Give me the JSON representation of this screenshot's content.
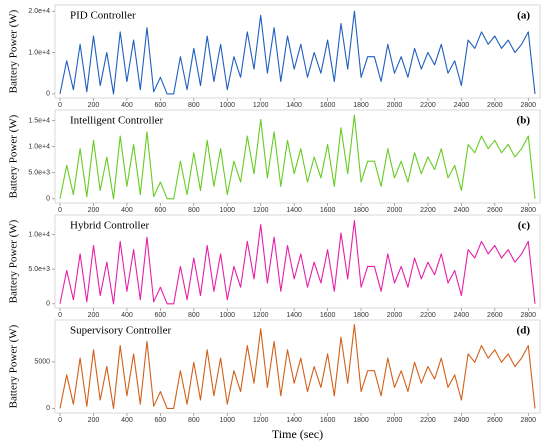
{
  "chart_data": [
    {
      "type": "line",
      "title": "PID Controller",
      "annotation": "(a)",
      "ylabel": "Battery Power (W)",
      "color": "#1f5fbf",
      "x": [
        0,
        40,
        80,
        120,
        160,
        200,
        240,
        280,
        320,
        360,
        400,
        440,
        480,
        520,
        560,
        600,
        640,
        680,
        720,
        760,
        800,
        840,
        880,
        920,
        960,
        1000,
        1040,
        1080,
        1120,
        1160,
        1200,
        1240,
        1280,
        1320,
        1360,
        1400,
        1440,
        1480,
        1520,
        1560,
        1600,
        1640,
        1680,
        1720,
        1760,
        1800,
        1840,
        1880,
        1920,
        1960,
        2000,
        2040,
        2080,
        2120,
        2160,
        2200,
        2240,
        2280,
        2320,
        2360,
        2400,
        2440,
        2480,
        2520,
        2560,
        2600,
        2640,
        2680,
        2720,
        2760,
        2800,
        2840
      ],
      "values": [
        0,
        8000,
        1000,
        12000,
        500,
        14000,
        2000,
        10000,
        0,
        15000,
        3000,
        13000,
        1000,
        16000,
        500,
        4000,
        0,
        0,
        9000,
        1000,
        11000,
        2000,
        14000,
        3000,
        12000,
        1000,
        9000,
        4000,
        15000,
        6000,
        19000,
        5000,
        16000,
        3000,
        14000,
        6000,
        12000,
        4000,
        10000,
        5000,
        13000,
        3000,
        17000,
        6000,
        20000,
        4000,
        9000,
        9000,
        3000,
        12000,
        5000,
        9000,
        4000,
        11000,
        6000,
        10000,
        7000,
        12000,
        5000,
        8000,
        2000,
        13000,
        11000,
        15000,
        12000,
        14000,
        11000,
        13000,
        10000,
        12000,
        15000,
        0
      ],
      "xlim": [
        -30,
        2870
      ],
      "xticks": [
        0,
        200,
        400,
        600,
        800,
        1000,
        1200,
        1400,
        1600,
        1800,
        2000,
        2200,
        2400,
        2600,
        2800
      ],
      "ylim": [
        -1000,
        21500
      ],
      "yticks": [
        0,
        {
          "value": 10000,
          "label": "1.0e+4"
        },
        {
          "value": 20000,
          "label": "2.0e+4"
        }
      ]
    },
    {
      "type": "line",
      "title": "Intelligent Controller",
      "annotation": "(b)",
      "ylabel": "Battery Power (W)",
      "color": "#66cc22",
      "x": [
        0,
        40,
        80,
        120,
        160,
        200,
        240,
        280,
        320,
        360,
        400,
        440,
        480,
        520,
        560,
        600,
        640,
        680,
        720,
        760,
        800,
        840,
        880,
        920,
        960,
        1000,
        1040,
        1080,
        1120,
        1160,
        1200,
        1240,
        1280,
        1320,
        1360,
        1400,
        1440,
        1480,
        1520,
        1560,
        1600,
        1640,
        1680,
        1720,
        1760,
        1800,
        1840,
        1880,
        1920,
        1960,
        2000,
        2040,
        2080,
        2120,
        2160,
        2200,
        2240,
        2280,
        2320,
        2360,
        2400,
        2440,
        2480,
        2520,
        2560,
        2600,
        2640,
        2680,
        2720,
        2760,
        2800,
        2840
      ],
      "values": [
        0,
        6400,
        800,
        9600,
        400,
        11200,
        1600,
        8000,
        0,
        12000,
        2400,
        10400,
        800,
        12800,
        400,
        3200,
        0,
        0,
        7200,
        800,
        8800,
        1600,
        11200,
        2400,
        9600,
        800,
        7200,
        3200,
        12000,
        4800,
        15200,
        4000,
        12800,
        2400,
        11200,
        4800,
        9600,
        3200,
        8000,
        4000,
        10400,
        2400,
        13600,
        4800,
        16000,
        3200,
        7200,
        7200,
        2400,
        9600,
        4000,
        7200,
        3200,
        8800,
        4800,
        8000,
        5600,
        9600,
        4000,
        6400,
        1600,
        10400,
        8800,
        12000,
        9600,
        11200,
        8800,
        10400,
        8000,
        9600,
        12000,
        0
      ],
      "xlim": [
        -30,
        2870
      ],
      "xticks": [
        0,
        200,
        400,
        600,
        800,
        1000,
        1200,
        1400,
        1600,
        1800,
        2000,
        2200,
        2400,
        2600,
        2800
      ],
      "ylim": [
        -800,
        17000
      ],
      "yticks": [
        0,
        {
          "value": 5000,
          "label": "5.0e+3"
        },
        {
          "value": 10000,
          "label": "1.0e+4"
        },
        {
          "value": 15000,
          "label": "1.5e+4"
        }
      ]
    },
    {
      "type": "line",
      "title": "Hybrid Controller",
      "annotation": "(c)",
      "ylabel": "Battery Power (W)",
      "color": "#e61fa8",
      "x": [
        0,
        40,
        80,
        120,
        160,
        200,
        240,
        280,
        320,
        360,
        400,
        440,
        480,
        520,
        560,
        600,
        640,
        680,
        720,
        760,
        800,
        840,
        880,
        920,
        960,
        1000,
        1040,
        1080,
        1120,
        1160,
        1200,
        1240,
        1280,
        1320,
        1360,
        1400,
        1440,
        1480,
        1520,
        1560,
        1600,
        1640,
        1680,
        1720,
        1760,
        1800,
        1840,
        1880,
        1920,
        1960,
        2000,
        2040,
        2080,
        2120,
        2160,
        2200,
        2240,
        2280,
        2320,
        2360,
        2400,
        2440,
        2480,
        2520,
        2560,
        2600,
        2640,
        2680,
        2720,
        2760,
        2800,
        2840
      ],
      "values": [
        0,
        4800,
        600,
        7200,
        300,
        8400,
        1200,
        6000,
        0,
        9000,
        1800,
        7800,
        600,
        9600,
        300,
        2400,
        0,
        0,
        5400,
        600,
        6600,
        1200,
        8400,
        1800,
        7200,
        600,
        5400,
        2400,
        9000,
        3600,
        11400,
        3000,
        9600,
        1800,
        8400,
        3600,
        7200,
        2400,
        6000,
        3000,
        7800,
        1800,
        10200,
        3600,
        12000,
        2400,
        5400,
        5400,
        1800,
        7200,
        3000,
        5400,
        2400,
        6600,
        3600,
        6000,
        4200,
        7200,
        3000,
        4800,
        1200,
        7800,
        6600,
        9000,
        7200,
        8400,
        6600,
        7800,
        6000,
        7200,
        9000,
        0
      ],
      "xlim": [
        -30,
        2870
      ],
      "xticks": [
        0,
        200,
        400,
        600,
        800,
        1000,
        1200,
        1400,
        1600,
        1800,
        2000,
        2200,
        2400,
        2600,
        2800
      ],
      "ylim": [
        -600,
        12800
      ],
      "yticks": [
        0,
        {
          "value": 5000,
          "label": "5.0e+3"
        },
        {
          "value": 10000,
          "label": "1.0e+4"
        }
      ]
    },
    {
      "type": "line",
      "title": "Supervisory Controller",
      "annotation": "(d)",
      "ylabel": "Battery Power (W)",
      "xlabel": "Time (sec)",
      "color": "#d2601a",
      "x": [
        0,
        40,
        80,
        120,
        160,
        200,
        240,
        280,
        320,
        360,
        400,
        440,
        480,
        520,
        560,
        600,
        640,
        680,
        720,
        760,
        800,
        840,
        880,
        920,
        960,
        1000,
        1040,
        1080,
        1120,
        1160,
        1200,
        1240,
        1280,
        1320,
        1360,
        1400,
        1440,
        1480,
        1520,
        1560,
        1600,
        1640,
        1680,
        1720,
        1760,
        1800,
        1840,
        1880,
        1920,
        1960,
        2000,
        2040,
        2080,
        2120,
        2160,
        2200,
        2240,
        2280,
        2320,
        2360,
        2400,
        2440,
        2480,
        2520,
        2560,
        2600,
        2640,
        2680,
        2720,
        2760,
        2800,
        2840
      ],
      "values": [
        0,
        3600,
        450,
        5400,
        225,
        6300,
        900,
        4500,
        0,
        6750,
        1350,
        5850,
        450,
        7200,
        225,
        1800,
        0,
        0,
        4050,
        450,
        4950,
        900,
        6300,
        1350,
        5400,
        450,
        4050,
        1800,
        6750,
        2700,
        8550,
        2250,
        7200,
        1350,
        6300,
        2700,
        5400,
        1800,
        4500,
        2250,
        5850,
        1350,
        7650,
        2700,
        9000,
        1800,
        4050,
        4050,
        1350,
        5400,
        2250,
        4050,
        1800,
        4950,
        2700,
        4500,
        3150,
        5400,
        2250,
        3600,
        900,
        5850,
        4950,
        6750,
        5400,
        6300,
        4950,
        5850,
        4500,
        5400,
        6750,
        0
      ],
      "xlim": [
        -30,
        2870
      ],
      "xticks": [
        0,
        200,
        400,
        600,
        800,
        1000,
        1200,
        1400,
        1600,
        1800,
        2000,
        2200,
        2400,
        2600,
        2800
      ],
      "ylim": [
        -500,
        9500
      ],
      "yticks": [
        0,
        5000
      ]
    }
  ]
}
